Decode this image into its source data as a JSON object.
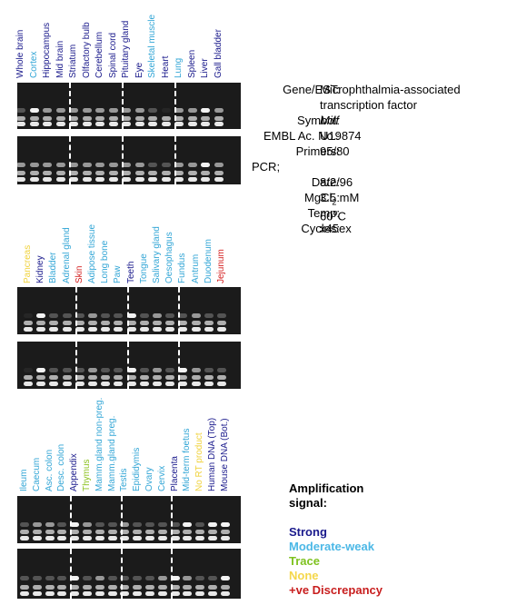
{
  "panels": [
    {
      "lanes": [
        {
          "label": "Whole brain",
          "color": "#1a1a8c"
        },
        {
          "label": "Cortex",
          "color": "#33a6d6"
        },
        {
          "label": "Hippocampus",
          "color": "#1a1a8c"
        },
        {
          "label": "Mid brain",
          "color": "#1a1a8c"
        },
        {
          "label": "Striatum",
          "color": "#1a1a8c"
        },
        {
          "label": "Olfactory bulb",
          "color": "#1a1a8c"
        },
        {
          "label": "Cerebellum",
          "color": "#1a1a8c"
        },
        {
          "label": "Spinal cord",
          "color": "#1a1a8c"
        },
        {
          "label": "Pituitary gland",
          "color": "#1a1a8c"
        },
        {
          "label": "Eye",
          "color": "#1a1a8c"
        },
        {
          "label": "Skeletal muscle",
          "color": "#33a6d6"
        },
        {
          "label": "Heart",
          "color": "#1a1a8c"
        },
        {
          "label": "Lung",
          "color": "#33a6d6"
        },
        {
          "label": "Spleen",
          "color": "#1a1a8c"
        },
        {
          "label": "Liver",
          "color": "#1a1a8c"
        },
        {
          "label": "Gall bladder",
          "color": "#1a1a8c"
        }
      ]
    },
    {
      "lanes": [
        {
          "label": "Pancreas",
          "color": "#f0d23c"
        },
        {
          "label": "Kidney",
          "color": "#1a1a8c"
        },
        {
          "label": "Bladder",
          "color": "#33a6d6"
        },
        {
          "label": "Adrenal gland",
          "color": "#33a6d6"
        },
        {
          "label": "Skin",
          "color": "#d41f1f"
        },
        {
          "label": "Adipose tissue",
          "color": "#33a6d6"
        },
        {
          "label": "Long bone",
          "color": "#33a6d6"
        },
        {
          "label": "Paw",
          "color": "#33a6d6"
        },
        {
          "label": "Teeth",
          "color": "#1a1a8c"
        },
        {
          "label": "Tongue",
          "color": "#33a6d6"
        },
        {
          "label": "Salivary gland",
          "color": "#33a6d6"
        },
        {
          "label": "Oesophagus",
          "color": "#33a6d6"
        },
        {
          "label": "Fundus",
          "color": "#33a6d6"
        },
        {
          "label": "Antrum",
          "color": "#33a6d6"
        },
        {
          "label": "Duodenum",
          "color": "#33a6d6"
        },
        {
          "label": "Jejunum",
          "color": "#d41f1f"
        }
      ]
    },
    {
      "lanes": [
        {
          "label": "Ileum",
          "color": "#33a6d6"
        },
        {
          "label": "Caecum",
          "color": "#33a6d6"
        },
        {
          "label": "Asc. colon",
          "color": "#33a6d6"
        },
        {
          "label": "Desc. colon",
          "color": "#33a6d6"
        },
        {
          "label": "Appendix",
          "color": "#1a1a8c"
        },
        {
          "label": "Thymus",
          "color": "#8cc21f"
        },
        {
          "label": "Mamm.gland non-preg.",
          "color": "#33a6d6"
        },
        {
          "label": "Mamm.gland preg.",
          "color": "#33a6d6"
        },
        {
          "label": "Testis",
          "color": "#33a6d6"
        },
        {
          "label": "Epididymis",
          "color": "#33a6d6"
        },
        {
          "label": "Ovary",
          "color": "#33a6d6"
        },
        {
          "label": "Cervix",
          "color": "#33a6d6"
        },
        {
          "label": "Placenta",
          "color": "#1a1a8c"
        },
        {
          "label": "Mid-term foetus",
          "color": "#33a6d6"
        },
        {
          "label": "No RT product",
          "color": "#f0d23c"
        },
        {
          "label": "Human DNA (Top)",
          "color": "#1a1a8c"
        },
        {
          "label": "Mouse DNA (Bot.)",
          "color": "#1a1a8c"
        }
      ]
    }
  ],
  "info": {
    "gene_key": "Gene/EST:",
    "gene_val_1": "Microphthalmia-associated",
    "gene_val_2": "transcription factor",
    "symbol_key": "Symbol:",
    "symbol_val": "Mitf",
    "embl_key": "EMBL Ac. No.:",
    "embl_val": "U19874",
    "primers_key": "Primers:",
    "primers_val": "95/80",
    "pcr_key": "PCR;",
    "date_key": "Date:",
    "date_val": "8/2/96",
    "mgcl_key": "MgCl",
    "mgcl_sub": "2",
    "mgcl_colon": ":",
    "mgcl_val": "3.5 mM",
    "temp_key": "Temp:",
    "temp_val": "60",
    "temp_sup": "o",
    "temp_unit": "C",
    "cycles_key": "Cycles:",
    "cycles_val": "x45ex"
  },
  "legend": {
    "title_1": "Amplification",
    "title_2": "signal:",
    "items": [
      {
        "label": "Strong",
        "color": "#1a1a8c"
      },
      {
        "label": "Moderate-weak",
        "color": "#4cb8e6"
      },
      {
        "label": "Trace",
        "color": "#7ec21f"
      },
      {
        "label": "None",
        "color": "#f5d74a"
      },
      {
        "label": "+ve Discrepancy",
        "color": "#c81e1e"
      }
    ]
  }
}
